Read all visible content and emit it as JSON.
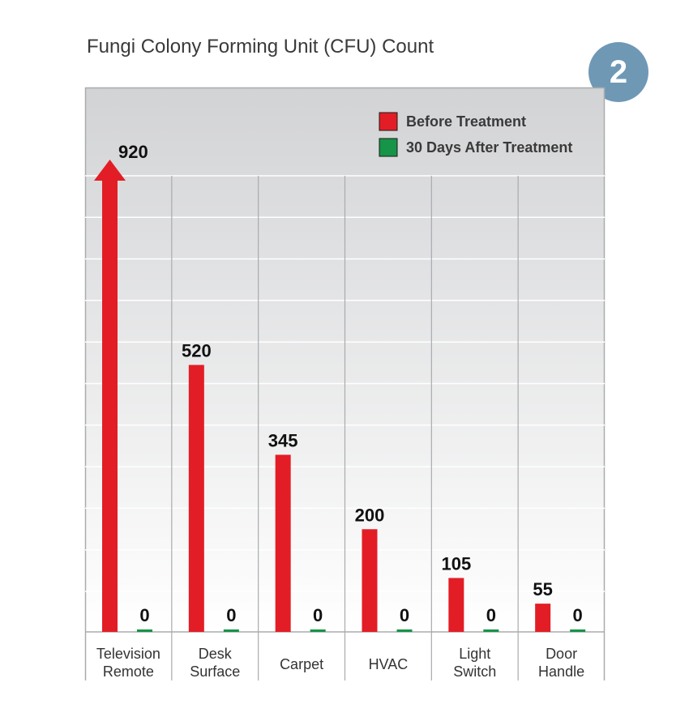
{
  "badge": "2",
  "chart_data": {
    "type": "bar",
    "title": "Fungi Colony Forming Unit (CFU) Count",
    "categories": [
      [
        "Television",
        "Remote"
      ],
      [
        "Desk",
        "Surface"
      ],
      [
        "Carpet"
      ],
      [
        "HVAC"
      ],
      [
        "Light",
        "Switch"
      ],
      [
        "Door",
        "Handle"
      ]
    ],
    "series": [
      {
        "name": "Before Treatment",
        "color": "#e31d25",
        "values": [
          920,
          520,
          345,
          200,
          105,
          55
        ]
      },
      {
        "name": "30 Days After Treatment",
        "color": "#169447",
        "values": [
          0,
          0,
          0,
          0,
          0,
          0
        ]
      }
    ],
    "ylim": [
      0,
      920
    ],
    "grid": true,
    "legend_position": "top-right",
    "arrow_on_max": true
  }
}
